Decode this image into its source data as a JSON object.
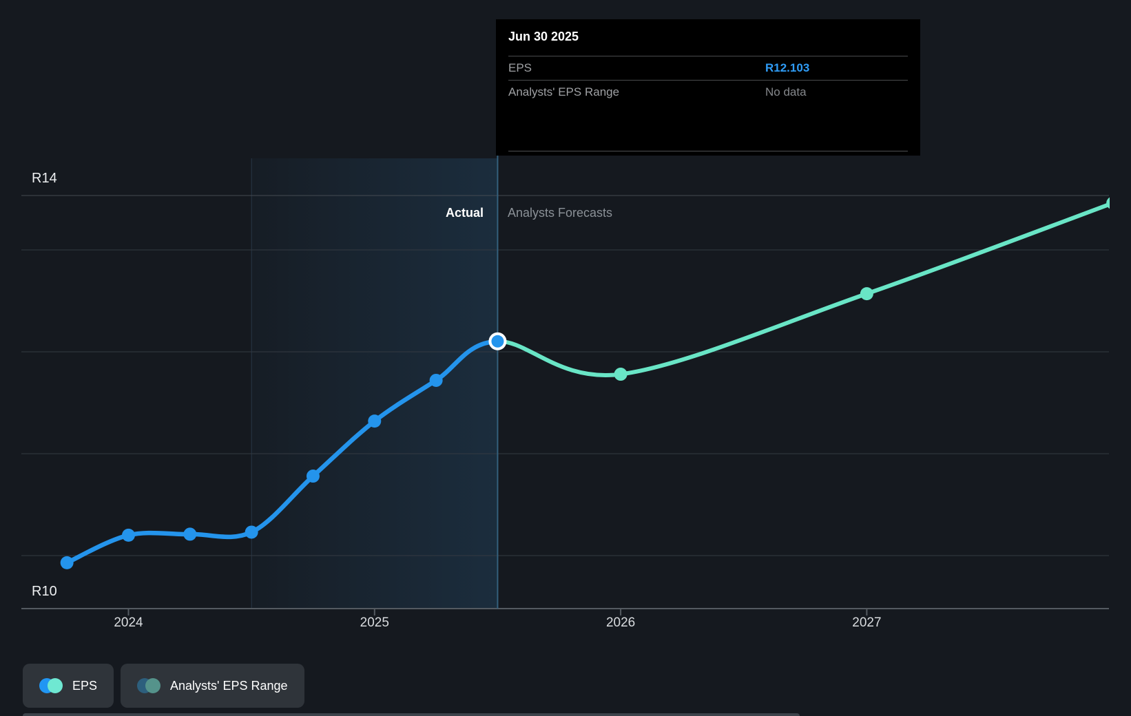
{
  "tooltip": {
    "title": "Jun 30 2025",
    "rows": [
      {
        "label": "EPS",
        "value": "R12.103"
      },
      {
        "label": "Analysts' EPS Range",
        "value": "No data"
      }
    ]
  },
  "annotations": {
    "actual": "Actual",
    "forecast": "Analysts Forecasts"
  },
  "y_axis": {
    "top_label": "R14",
    "bottom_label": "R10"
  },
  "legend": [
    {
      "label": "EPS",
      "colors": [
        "#2196f3",
        "#6fe8d2"
      ]
    },
    {
      "label": "Analysts' EPS Range",
      "colors": [
        "#2d5f7d",
        "#55938b"
      ]
    }
  ],
  "colors": {
    "background": "#15191f",
    "actual_line": "#2494ec",
    "forecast_line": "#69e5c6",
    "tooltip_value_accent": "#2f9cf6",
    "divider_line": "#34607d",
    "gridline": "#343a42",
    "axis_line": "#545a61"
  },
  "chart_data": {
    "type": "line",
    "currency_prefix": "R",
    "x_ticks": [
      {
        "t": 2024,
        "label": "2024"
      },
      {
        "t": 2025,
        "label": "2025"
      },
      {
        "t": 2026,
        "label": "2026"
      },
      {
        "t": 2027,
        "label": "2027"
      }
    ],
    "y_gridline_values": [
      13,
      12,
      11,
      10
    ],
    "y_axis_labels_shown": [
      "R14",
      "R10"
    ],
    "divider_t": 2025.5,
    "highlight_band": {
      "from_t": 2024.5,
      "to_t": 2025.5
    },
    "series": [
      {
        "name": "EPS (actual)",
        "color": "#2494ec",
        "points": [
          {
            "t": 2023.75,
            "v": 9.93
          },
          {
            "t": 2024.0,
            "v": 10.2
          },
          {
            "t": 2024.25,
            "v": 10.21
          },
          {
            "t": 2024.5,
            "v": 10.23
          },
          {
            "t": 2024.75,
            "v": 10.78
          },
          {
            "t": 2025.0,
            "v": 11.32
          },
          {
            "t": 2025.25,
            "v": 11.72
          },
          {
            "t": 2025.5,
            "v": 12.103
          }
        ]
      },
      {
        "name": "EPS (analysts forecast)",
        "color": "#69e5c6",
        "points": [
          {
            "t": 2025.5,
            "v": 12.103
          },
          {
            "t": 2026.0,
            "v": 11.78
          },
          {
            "t": 2027.0,
            "v": 12.57
          },
          {
            "t": 2028.0,
            "v": 13.46
          }
        ]
      }
    ],
    "highlight_point": {
      "t": 2025.5,
      "v": 12.103,
      "date": "Jun 30 2025"
    }
  }
}
